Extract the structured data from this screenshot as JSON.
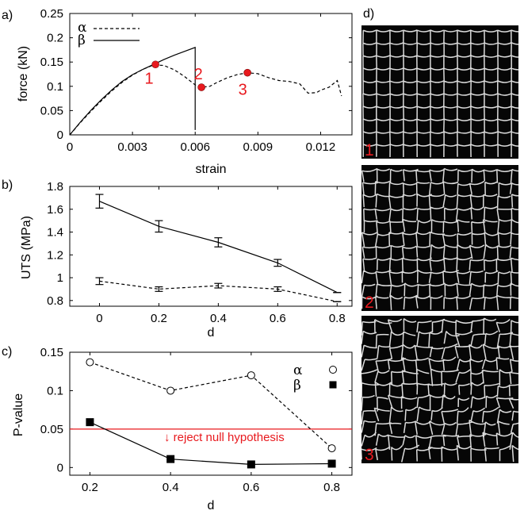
{
  "chart_data": [
    {
      "panel_label": "a)",
      "type": "line",
      "xlabel": "strain",
      "ylabel": "force (kN)",
      "xlim": [
        0,
        0.013
      ],
      "ylim": [
        0,
        0.25
      ],
      "xticks": [
        "0",
        "0.003",
        "0.006",
        "0.009",
        "0.012"
      ],
      "yticks": [
        "0",
        "0.05",
        "0.1",
        "0.15",
        "0.2",
        "0.25"
      ],
      "legend_position": "top-left",
      "series": [
        {
          "name": "α",
          "style": "dashed",
          "x": [
            0,
            0.0005,
            0.001,
            0.0015,
            0.002,
            0.0025,
            0.003,
            0.0035,
            0.004,
            0.0045,
            0.005,
            0.0055,
            0.006,
            0.0063,
            0.0067,
            0.007,
            0.0075,
            0.008,
            0.0085,
            0.009,
            0.0095,
            0.01,
            0.0105,
            0.011,
            0.0114,
            0.0118,
            0.012,
            0.0124,
            0.0128,
            0.013
          ],
          "y": [
            0,
            0.025,
            0.048,
            0.07,
            0.09,
            0.108,
            0.123,
            0.135,
            0.144,
            0.143,
            0.134,
            0.12,
            0.103,
            0.098,
            0.1,
            0.107,
            0.117,
            0.124,
            0.128,
            0.126,
            0.118,
            0.112,
            0.11,
            0.105,
            0.086,
            0.087,
            0.092,
            0.098,
            0.112,
            0.08
          ]
        },
        {
          "name": "β",
          "style": "solid",
          "x": [
            0,
            0.0005,
            0.001,
            0.0015,
            0.002,
            0.0025,
            0.003,
            0.0035,
            0.004,
            0.0045,
            0.005,
            0.0055,
            0.006,
            0.006
          ],
          "y": [
            0,
            0.026,
            0.05,
            0.072,
            0.092,
            0.11,
            0.124,
            0.135,
            0.145,
            0.155,
            0.164,
            0.172,
            0.18,
            0.01
          ]
        }
      ],
      "points": [
        {
          "label": "1",
          "x": 0.0041,
          "y": 0.145
        },
        {
          "label": "2",
          "x": 0.0063,
          "y": 0.098
        },
        {
          "label": "3",
          "x": 0.0085,
          "y": 0.128
        }
      ],
      "point_color": "#e8191e"
    },
    {
      "panel_label": "b)",
      "type": "line",
      "xlabel": "d",
      "ylabel": "UTS (MPa)",
      "xlim": [
        -0.1,
        0.85
      ],
      "ylim": [
        0.75,
        1.8
      ],
      "xticks": [
        "0",
        "0.2",
        "0.4",
        "0.6",
        "0.8"
      ],
      "yticks": [
        "0.8",
        "1",
        "1.2",
        "1.4",
        "1.6",
        "1.8"
      ],
      "series": [
        {
          "style": "solid",
          "x": [
            0,
            0.2,
            0.4,
            0.6,
            0.8
          ],
          "y": [
            1.67,
            1.45,
            1.31,
            1.13,
            0.87
          ],
          "err": [
            0.06,
            0.05,
            0.04,
            0.03,
            0.0
          ]
        },
        {
          "style": "dashed",
          "x": [
            0,
            0.2,
            0.4,
            0.6,
            0.8
          ],
          "y": [
            0.97,
            0.9,
            0.93,
            0.9,
            0.79
          ],
          "err": [
            0.03,
            0.02,
            0.02,
            0.02,
            0.0
          ]
        }
      ]
    },
    {
      "panel_label": "c)",
      "type": "line",
      "xlabel": "d",
      "ylabel": "P-value",
      "xlim": [
        0.15,
        0.85
      ],
      "ylim": [
        -0.01,
        0.15
      ],
      "xticks": [
        "0.2",
        "0.4",
        "0.6",
        "0.8"
      ],
      "yticks": [
        "0",
        "0.05",
        "0.1",
        "0.15"
      ],
      "legend_position": "top-right",
      "series": [
        {
          "name": "α",
          "style": "dashed",
          "marker": "open-circle",
          "x": [
            0.2,
            0.4,
            0.6,
            0.8
          ],
          "y": [
            0.137,
            0.1,
            0.12,
            0.025
          ]
        },
        {
          "name": "β",
          "style": "solid",
          "marker": "filled-square",
          "x": [
            0.2,
            0.4,
            0.6,
            0.8
          ],
          "y": [
            0.059,
            0.011,
            0.004,
            0.005
          ]
        }
      ],
      "threshold": {
        "y": 0.05,
        "color": "#e8191e",
        "annotation": "↓ reject null hypothesis"
      }
    }
  ],
  "images_panel": {
    "panel_label": "d)",
    "frames": [
      {
        "label": "1",
        "disorder": 0.05
      },
      {
        "label": "2",
        "disorder": 0.35
      },
      {
        "label": "3",
        "disorder": 0.6
      }
    ],
    "label_color": "#e8191e"
  }
}
